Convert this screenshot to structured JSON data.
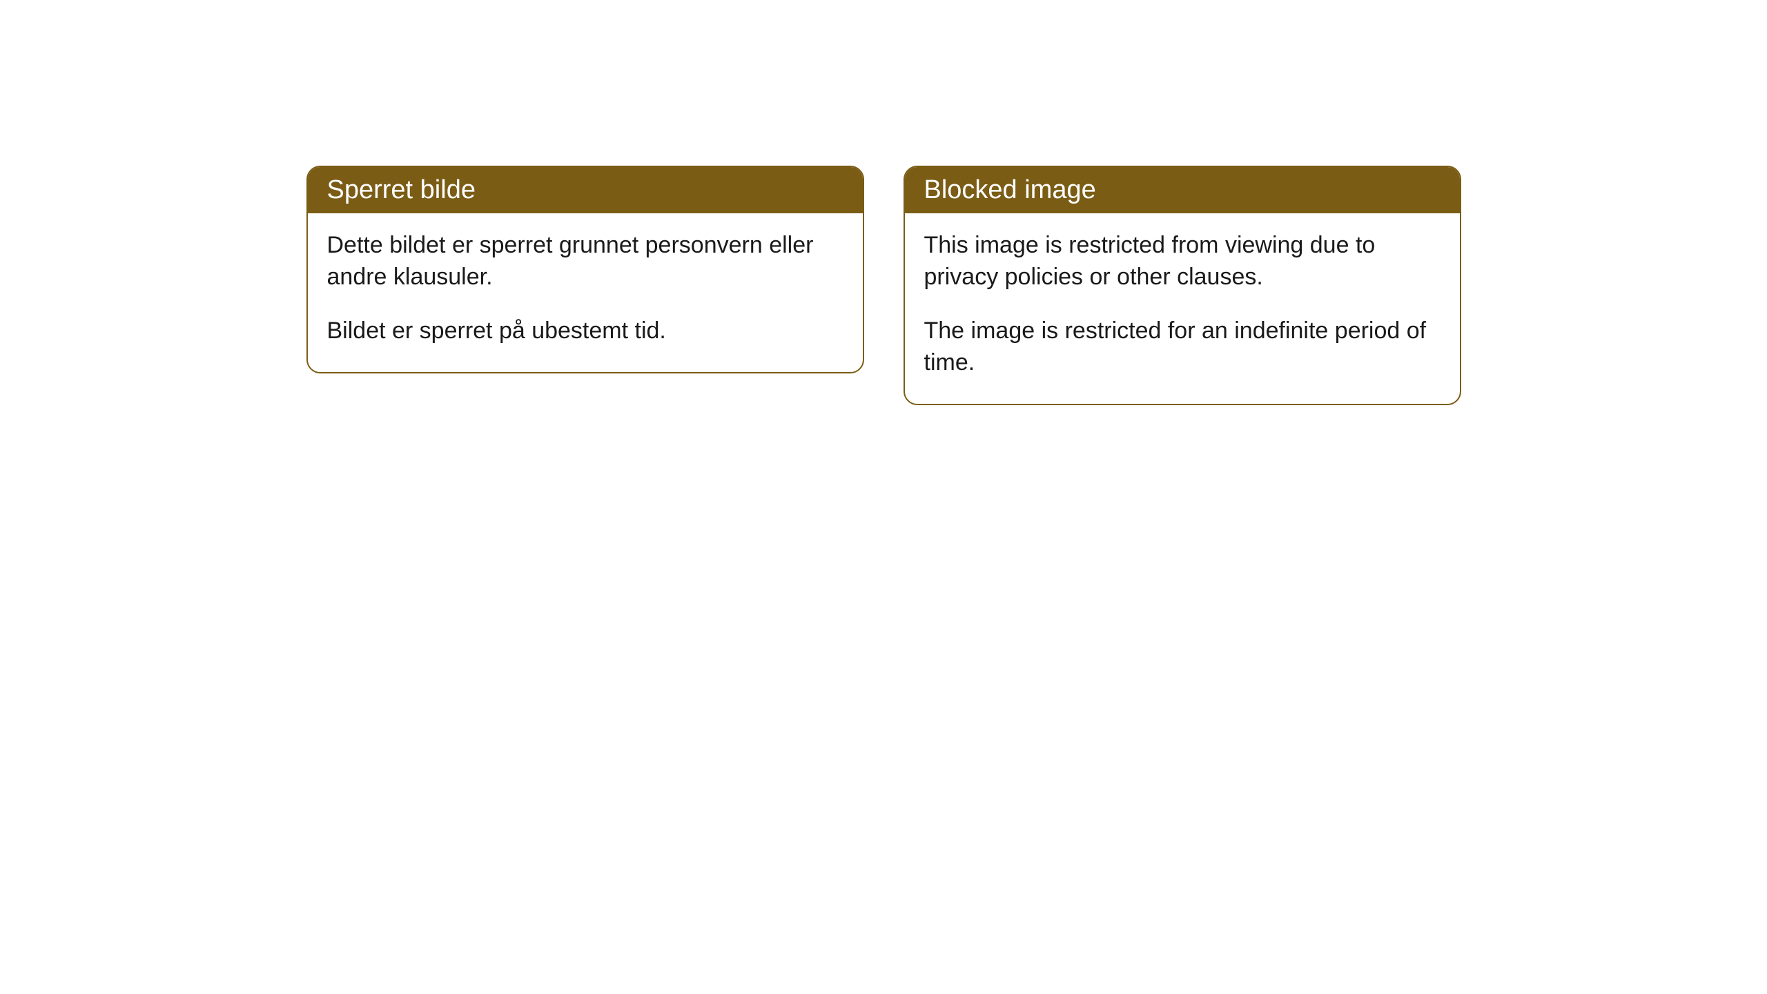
{
  "cards": [
    {
      "title": "Sperret bilde",
      "paragraph1": "Dette bildet er sperret grunnet personvern eller andre klausuler.",
      "paragraph2": "Bildet er sperret på ubestemt tid."
    },
    {
      "title": "Blocked image",
      "paragraph1": "This image is restricted from viewing due to privacy policies or other clauses.",
      "paragraph2": "The image is restricted for an indefinite period of time."
    }
  ],
  "styling": {
    "header_bg_color": "#7a5c15",
    "header_text_color": "#ffffff",
    "border_color": "#7a5c15",
    "body_bg_color": "#ffffff",
    "body_text_color": "#1a1a1a",
    "border_radius": 20,
    "title_fontsize": 38,
    "body_fontsize": 34
  }
}
